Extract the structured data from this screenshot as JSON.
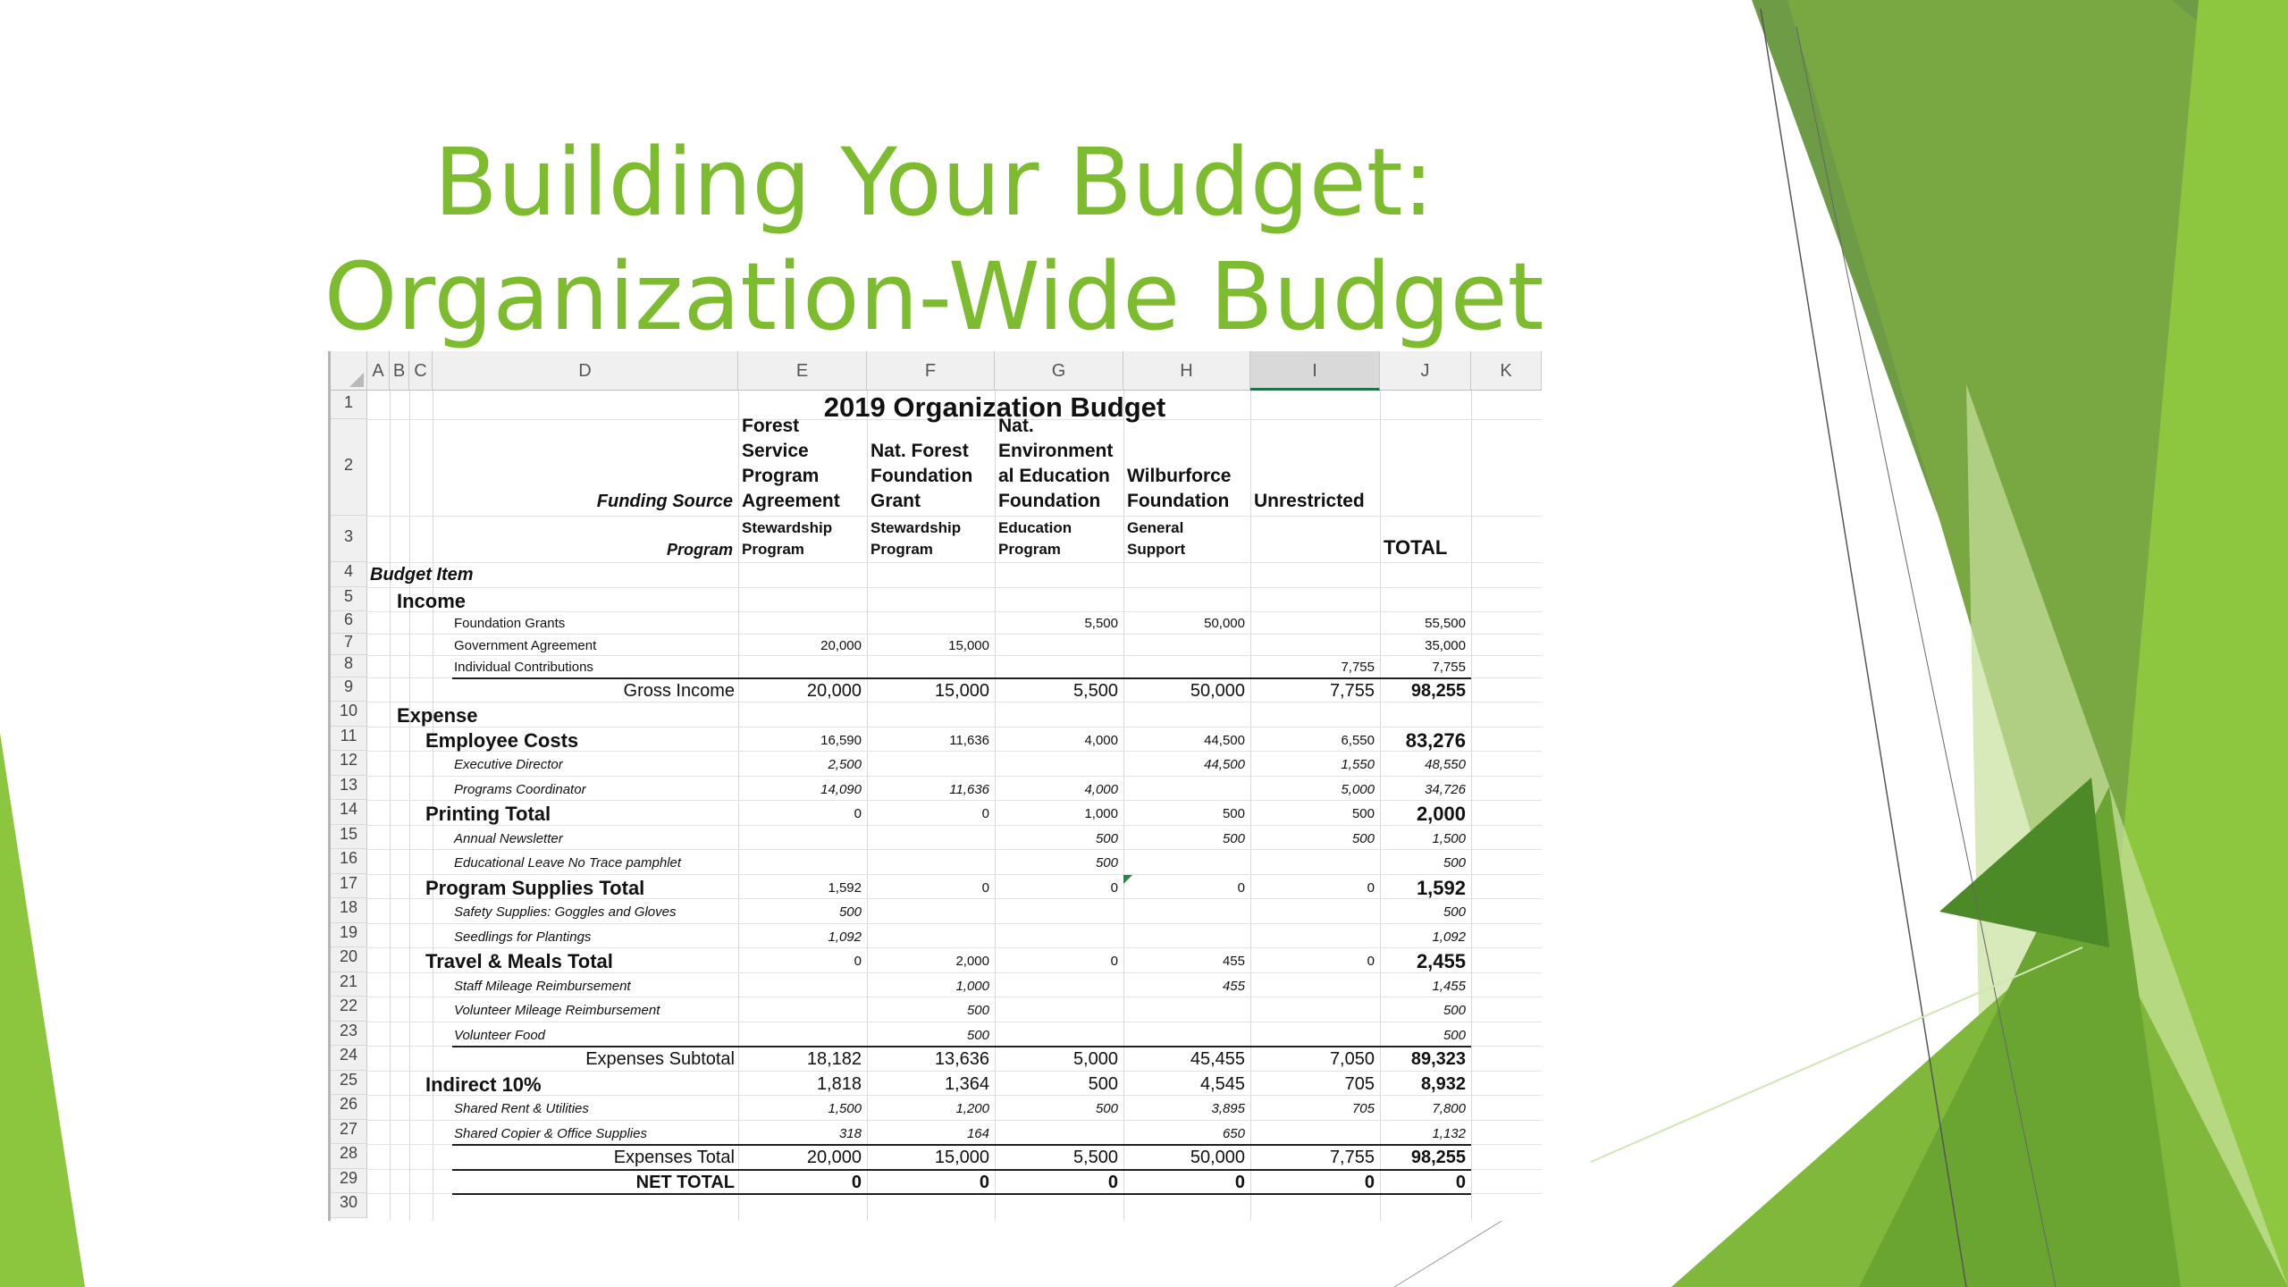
{
  "slide": {
    "title_line1": "Building Your Budget:",
    "title_line2": "Organization-Wide Budget",
    "accent_color": "#7cbc2e"
  },
  "sheet": {
    "columns": [
      "A",
      "B",
      "C",
      "D",
      "E",
      "F",
      "G",
      "H",
      "I",
      "J",
      "K"
    ],
    "selected_column": "I",
    "row_numbers": [
      "1",
      "2",
      "3",
      "4",
      "5",
      "6",
      "7",
      "8",
      "9",
      "10",
      "11",
      "12",
      "13",
      "14",
      "15",
      "16",
      "17",
      "18",
      "19",
      "20",
      "21",
      "22",
      "23",
      "24",
      "25",
      "26",
      "27",
      "28",
      "29",
      "30"
    ],
    "title": "2019 Organization Budget",
    "funding_source_label": "Funding Source",
    "program_label": "Program",
    "funding_sources": [
      [
        "Forest",
        "Service",
        "Program",
        "Agreement"
      ],
      [
        "Nat. Forest",
        "Foundation",
        "Grant"
      ],
      [
        "Nat.",
        "Environment",
        "al Education",
        "Foundation"
      ],
      [
        "Wilburforce",
        "Foundation"
      ],
      [
        "Unrestricted"
      ]
    ],
    "programs": [
      [
        "Stewardship",
        "Program"
      ],
      [
        "Stewardship",
        "Program"
      ],
      [
        "Education",
        "Program"
      ],
      [
        "General",
        "Support"
      ],
      [
        ""
      ]
    ],
    "total_header": "TOTAL",
    "budget_item_label": "Budget Item",
    "rows": [
      {
        "label": "Income",
        "style": "section",
        "values": [
          "",
          "",
          "",
          "",
          "",
          ""
        ]
      },
      {
        "label": "Foundation Grants",
        "style": "detail",
        "values": [
          "",
          "",
          "5,500",
          "50,000",
          "",
          "55,500"
        ]
      },
      {
        "label": "Government Agreement",
        "style": "detail",
        "values": [
          "20,000",
          "15,000",
          "",
          "",
          "",
          "35,000"
        ]
      },
      {
        "label": "Individual Contributions",
        "style": "detail",
        "values": [
          "",
          "",
          "",
          "",
          "7,755",
          "7,755"
        ]
      },
      {
        "label": "Gross Income",
        "style": "subtotal",
        "values": [
          "20,000",
          "15,000",
          "5,500",
          "50,000",
          "7,755",
          "98,255"
        ]
      },
      {
        "label": "Expense",
        "style": "section",
        "values": [
          "",
          "",
          "",
          "",
          "",
          ""
        ]
      },
      {
        "label": "Employee Costs",
        "style": "category",
        "values": [
          "16,590",
          "11,636",
          "4,000",
          "44,500",
          "6,550",
          "83,276"
        ]
      },
      {
        "label": "Executive Director",
        "style": "item",
        "values": [
          "2,500",
          "",
          "",
          "44,500",
          "1,550",
          "48,550"
        ]
      },
      {
        "label": "Programs Coordinator",
        "style": "item",
        "values": [
          "14,090",
          "11,636",
          "4,000",
          "",
          "5,000",
          "34,726"
        ]
      },
      {
        "label": "Printing Total",
        "style": "category",
        "values": [
          "0",
          "0",
          "1,000",
          "500",
          "500",
          "2,000"
        ]
      },
      {
        "label": "Annual Newsletter",
        "style": "item",
        "values": [
          "",
          "",
          "500",
          "500",
          "500",
          "1,500"
        ]
      },
      {
        "label": "Educational Leave No Trace pamphlet",
        "style": "item",
        "values": [
          "",
          "",
          "500",
          "",
          "",
          "500"
        ]
      },
      {
        "label": "Program Supplies Total",
        "style": "category",
        "values": [
          "1,592",
          "0",
          "0",
          "0",
          "0",
          "1,592"
        ]
      },
      {
        "label": "Safety Supplies: Goggles and Gloves",
        "style": "item",
        "values": [
          "500",
          "",
          "",
          "",
          "",
          "500"
        ]
      },
      {
        "label": "Seedlings for Plantings",
        "style": "item",
        "values": [
          "1,092",
          "",
          "",
          "",
          "",
          "1,092"
        ]
      },
      {
        "label": "Travel & Meals Total",
        "style": "category",
        "values": [
          "0",
          "2,000",
          "0",
          "455",
          "0",
          "2,455"
        ]
      },
      {
        "label": "Staff Mileage Reimbursement",
        "style": "item",
        "values": [
          "",
          "1,000",
          "",
          "455",
          "",
          "1,455"
        ]
      },
      {
        "label": "Volunteer Mileage Reimbursement",
        "style": "item",
        "values": [
          "",
          "500",
          "",
          "",
          "",
          "500"
        ]
      },
      {
        "label": "Volunteer Food",
        "style": "item",
        "values": [
          "",
          "500",
          "",
          "",
          "",
          "500"
        ]
      },
      {
        "label": "Expenses Subtotal",
        "style": "subtotal",
        "values": [
          "18,182",
          "13,636",
          "5,000",
          "45,455",
          "7,050",
          "89,323"
        ]
      },
      {
        "label": "Indirect 10%",
        "style": "category-plain",
        "values": [
          "1,818",
          "1,364",
          "500",
          "4,545",
          "705",
          "8,932"
        ]
      },
      {
        "label": "Shared Rent & Utilities",
        "style": "item",
        "values": [
          "1,500",
          "1,200",
          "500",
          "3,895",
          "705",
          "7,800"
        ]
      },
      {
        "label": "Shared Copier & Office Supplies",
        "style": "item",
        "values": [
          "318",
          "164",
          "",
          "650",
          "",
          "1,132"
        ]
      },
      {
        "label": "Expenses Total",
        "style": "subtotal",
        "values": [
          "20,000",
          "15,000",
          "5,500",
          "50,000",
          "7,755",
          "98,255"
        ]
      },
      {
        "label": "NET TOTAL",
        "style": "net",
        "values": [
          "0",
          "0",
          "0",
          "0",
          "0",
          "0"
        ]
      }
    ]
  }
}
